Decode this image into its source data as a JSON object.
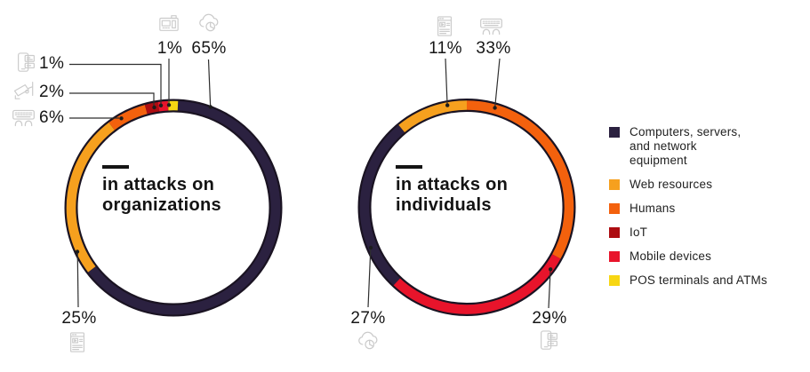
{
  "chart_data": [
    {
      "type": "donut",
      "title": "in attacks on organizations",
      "title_lines": [
        "in attacks on",
        "organizations"
      ],
      "unit": "%",
      "direction": "clockwise",
      "start_angle_deg": 2.5,
      "legend_position": "right",
      "segments": [
        {
          "name": "Computers, servers, and network equipment",
          "value": 65,
          "display": "65%",
          "color": "#2b2140",
          "draw_pct": 64.0
        },
        {
          "name": "Web resources",
          "value": 25,
          "display": "25%",
          "color": "#f6a01e"
        },
        {
          "name": "Humans",
          "value": 6,
          "display": "6%",
          "color": "#f3610d"
        },
        {
          "name": "IoT",
          "value": 2,
          "display": "2%",
          "color": "#ad0c11"
        },
        {
          "name": "Mobile devices",
          "value": 1,
          "display": "1%",
          "color": "#e8142b",
          "draw_pct": 1.5
        },
        {
          "name": "POS terminals and ATMs",
          "value": 1,
          "display": "1%",
          "color": "#f7d613",
          "draw_pct": 1.5
        }
      ]
    },
    {
      "type": "donut",
      "title": "in attacks on individuals",
      "title_lines": [
        "in attacks on",
        "individuals"
      ],
      "unit": "%",
      "direction": "clockwise",
      "start_angle_deg": 0,
      "legend_position": "right",
      "segments": [
        {
          "name": "Humans",
          "value": 33,
          "display": "33%",
          "color": "#f3610d"
        },
        {
          "name": "Mobile devices",
          "value": 29,
          "display": "29%",
          "color": "#e8142b"
        },
        {
          "name": "Computers, servers, and network equipment",
          "value": 27,
          "display": "27%",
          "color": "#2b2140"
        },
        {
          "name": "Web resources",
          "value": 11,
          "display": "11%",
          "color": "#f6a01e"
        }
      ]
    }
  ],
  "legend": {
    "items": [
      {
        "label": "Computers, servers, and network equipment",
        "color": "#2b2140"
      },
      {
        "label": "Web resources",
        "color": "#f6a01e"
      },
      {
        "label": "Humans",
        "color": "#f3610d"
      },
      {
        "label": "IoT",
        "color": "#ad0c11"
      },
      {
        "label": "Mobile devices",
        "color": "#e8142b"
      },
      {
        "label": "POS terminals and ATMs",
        "color": "#f7d613"
      }
    ]
  },
  "icons": {
    "cloud-icon": "Computers, servers, and network equipment",
    "browser-page-icon": "Web resources",
    "keyboard-hands-icon": "Humans",
    "cctv-camera-icon": "IoT",
    "smartphone-icon": "Mobile devices",
    "pos-terminal-icon": "POS terminals and ATMs"
  },
  "style": {
    "ring_outline_color": "#1a1322",
    "leader_line_color": "#2e2e2e",
    "icon_color": "#cbcbcb"
  }
}
